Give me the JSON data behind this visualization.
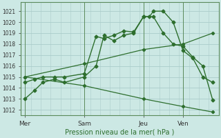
{
  "background_color": "#cce8e4",
  "grid_color": "#aaccca",
  "line_color": "#2d6e2d",
  "xlabel": "Pression niveau de la mer( hPa )",
  "ylim": [
    1011.5,
    1021.8
  ],
  "yticks": [
    1012,
    1013,
    1014,
    1015,
    1016,
    1017,
    1018,
    1019,
    1020,
    1021
  ],
  "xtick_labels": [
    "Mer",
    "Sam",
    "Jeu",
    "Ven"
  ],
  "xtick_positions": [
    0,
    30,
    60,
    80
  ],
  "xlim": [
    -2,
    98
  ],
  "vline_positions": [
    0,
    30,
    60,
    80
  ],
  "line1_x": [
    0,
    5,
    9,
    15,
    20,
    30,
    36,
    40,
    45,
    50,
    55,
    60,
    63,
    65,
    70,
    75,
    80,
    85,
    90,
    95
  ],
  "line1_y": [
    1013.0,
    1013.8,
    1014.5,
    1014.8,
    1014.5,
    1015.0,
    1016.0,
    1018.8,
    1018.3,
    1018.8,
    1019.0,
    1020.5,
    1020.5,
    1021.0,
    1021.0,
    1020.0,
    1017.4,
    1016.7,
    1015.0,
    1014.5
  ],
  "line2_x": [
    0,
    5,
    9,
    15,
    20,
    30,
    36,
    40,
    45,
    50,
    55,
    60,
    65,
    70,
    75,
    80,
    85,
    90,
    95
  ],
  "line2_y": [
    1014.5,
    1014.8,
    1015.0,
    1015.0,
    1015.0,
    1015.3,
    1018.7,
    1018.5,
    1018.8,
    1019.2,
    1019.1,
    1020.5,
    1020.5,
    1019.0,
    1018.0,
    1017.8,
    1016.8,
    1016.0,
    1012.9
  ],
  "line3_x": [
    0,
    30,
    60,
    80,
    95
  ],
  "line3_y": [
    1015.0,
    1016.2,
    1017.5,
    1018.0,
    1019.0
  ],
  "line4_x": [
    0,
    30,
    60,
    80,
    95
  ],
  "line4_y": [
    1015.0,
    1014.2,
    1013.0,
    1012.3,
    1011.8
  ]
}
